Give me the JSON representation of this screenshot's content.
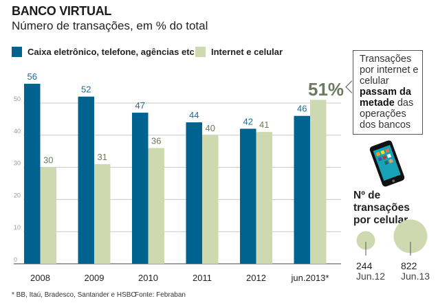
{
  "header": {
    "title": "BANCO VIRTUAL",
    "subtitle": "Número de transações, em % do total"
  },
  "legend": [
    {
      "label": "Caixa eletrônico, telefone, agências etc",
      "color": "#00628f"
    },
    {
      "label": "Internet e celular",
      "color": "#cfd9b0"
    }
  ],
  "callout": {
    "highlight_value": "51%",
    "text_pre": "Transações por internet e celular",
    "text_bold": "passam da metade",
    "text_post": "das operações dos bancos"
  },
  "phone_icon": "smartphone-icon",
  "cellphone_panel": {
    "title_line1": "Nº de transações",
    "title_line2": "por celular",
    "bubbles": [
      {
        "value": "244",
        "date": "Jun.12"
      },
      {
        "value": "822",
        "date": "Jun.13"
      }
    ]
  },
  "footnote": "* BB, Itaú, Bradesco, Santander e HSBC",
  "source": "Fonte: Febraban",
  "chart_data": {
    "type": "bar",
    "title": "BANCO VIRTUAL",
    "subtitle": "Número de transações, em % do total",
    "xlabel": "",
    "ylabel": "",
    "categories": [
      "2008",
      "2009",
      "2010",
      "2011",
      "2012",
      "jun.2013*"
    ],
    "series": [
      {
        "name": "Caixa eletrônico, telefone, agências etc",
        "color": "#00628f",
        "label_color": "#1a6b94",
        "values": [
          56,
          52,
          47,
          44,
          42,
          46
        ]
      },
      {
        "name": "Internet e celular",
        "color": "#cfd9b0",
        "label_color": "#6b7a5f",
        "values": [
          30,
          31,
          36,
          40,
          41,
          51
        ]
      }
    ],
    "ylim": [
      0,
      56
    ],
    "yticks": [
      0,
      10,
      20,
      30,
      40,
      50
    ],
    "grid": true,
    "legend_position": "top-left",
    "annotation": "51%"
  }
}
